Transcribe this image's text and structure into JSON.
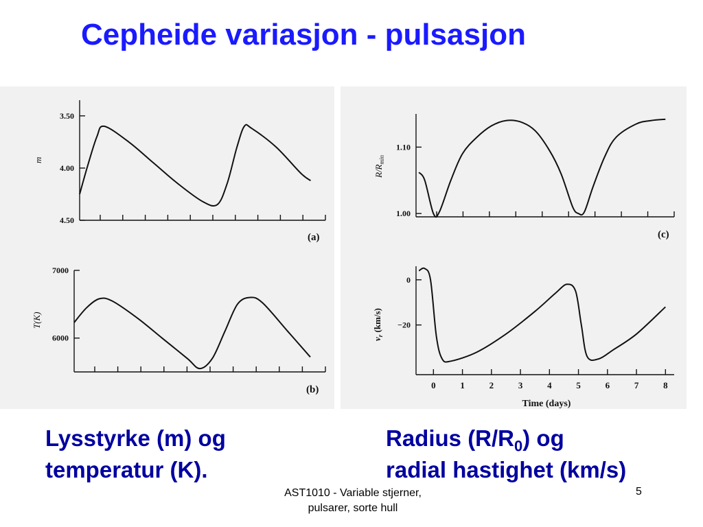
{
  "slide": {
    "title": "Cepheide variasjon - pulsasjon",
    "caption_left_line1": "Lysstyrke (m) og",
    "caption_left_line2": "temperatur (K).",
    "caption_right_prefix": "Radius (R/R",
    "caption_right_sub": "0",
    "caption_right_suffix": ") og",
    "caption_right_line2": "radial hastighet (km/s)",
    "footer_line1": "AST1010 - Variable stjerner,",
    "footer_line2": "pulsarer, sorte hull",
    "page_number": "5"
  },
  "colors": {
    "title": "#1a1aff",
    "caption": "#0000a0",
    "scan_bg": "#f1f1f1",
    "ink": "#111111"
  },
  "chart_data": [
    {
      "id": "a",
      "type": "line",
      "panel_label": "(a)",
      "ylabel": "m",
      "yticks": [
        "3.50",
        "4.00",
        "4.50"
      ],
      "ylim": [
        4.5,
        3.35
      ],
      "y_inverted": true,
      "xlim": [
        0,
        10.0
      ],
      "series": [
        {
          "x": [
            0,
            0.3,
            0.7,
            1.0,
            2.0,
            3.0,
            4.0,
            5.0,
            5.6,
            6.0,
            6.4,
            6.7,
            7.0,
            8.0,
            9.0,
            9.4
          ],
          "values": [
            4.25,
            4.0,
            3.7,
            3.6,
            3.75,
            3.95,
            4.15,
            4.32,
            4.35,
            4.15,
            3.8,
            3.6,
            3.62,
            3.8,
            4.05,
            4.12
          ]
        }
      ]
    },
    {
      "id": "b",
      "type": "line",
      "panel_label": "(b)",
      "ylabel": "T(K)",
      "yticks": [
        "7000",
        "6000"
      ],
      "ylim": [
        5500,
        7000
      ],
      "xlim": [
        0,
        10.0
      ],
      "series": [
        {
          "x": [
            0,
            0.5,
            1.0,
            1.5,
            2.5,
            3.5,
            4.5,
            5.0,
            5.5,
            6.0,
            6.5,
            7.0,
            7.5,
            8.5,
            9.4
          ],
          "values": [
            6230,
            6450,
            6580,
            6550,
            6300,
            6000,
            5700,
            5550,
            5700,
            6100,
            6500,
            6600,
            6520,
            6100,
            5720
          ]
        }
      ]
    },
    {
      "id": "c",
      "type": "line",
      "panel_label": "(c)",
      "ylabel": "R/R",
      "ylabel_sub": "min",
      "yticks": [
        "1.10",
        "1.00"
      ],
      "ylim": [
        0.995,
        1.15
      ],
      "xlim": [
        -0.6,
        8.3
      ],
      "series": [
        {
          "x": [
            -0.5,
            -0.3,
            0,
            0.2,
            0.6,
            1.0,
            1.5,
            2.0,
            2.5,
            3.0,
            3.5,
            4.0,
            4.4,
            4.8,
            5.0,
            5.2,
            5.5,
            5.9,
            6.3,
            7.0,
            7.5,
            8.0
          ],
          "values": [
            1.062,
            1.05,
            1.0,
            1.002,
            1.05,
            1.09,
            1.115,
            1.132,
            1.14,
            1.138,
            1.125,
            1.095,
            1.06,
            1.01,
            1.0,
            1.002,
            1.04,
            1.085,
            1.115,
            1.135,
            1.14,
            1.142
          ]
        }
      ]
    },
    {
      "id": "d",
      "type": "line",
      "ylabel": "v",
      "ylabel_sub": "r",
      "ylabel_suffix": " (km/s)",
      "yticks": [
        "0",
        "−20"
      ],
      "ylim": [
        -42,
        6
      ],
      "xlabel": "Time (days)",
      "xticks": [
        "0",
        "1",
        "2",
        "3",
        "4",
        "5",
        "6",
        "7",
        "8"
      ],
      "xlim": [
        -0.6,
        8.3
      ],
      "series": [
        {
          "x": [
            -0.5,
            -0.3,
            -0.1,
            0.1,
            0.3,
            0.6,
            1.5,
            2.5,
            3.5,
            4.2,
            4.6,
            4.9,
            5.1,
            5.3,
            5.7,
            6.2,
            7.0,
            8.0
          ],
          "values": [
            4,
            5,
            0,
            -25,
            -35,
            -36,
            -32,
            -24,
            -14,
            -6,
            -2,
            -5,
            -20,
            -34,
            -35,
            -31,
            -24,
            -12
          ]
        }
      ]
    }
  ]
}
